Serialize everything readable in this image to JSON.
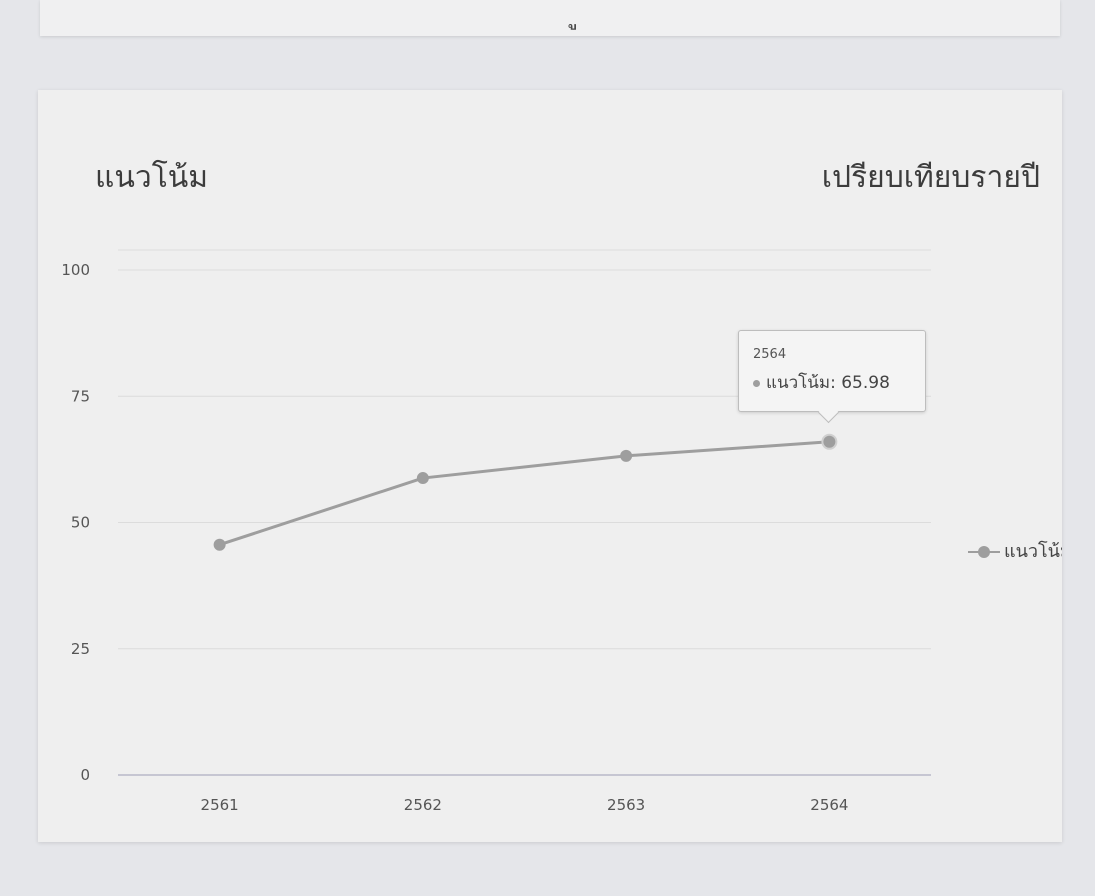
{
  "top_panel": {
    "partial_text": "ู"
  },
  "card": {
    "title": "แนวโน้ม",
    "subtitle": "เปรียบเทียบรายปี"
  },
  "tooltip": {
    "header": "2564",
    "series_label": "แนวโน้ม: 65.98"
  },
  "legend": {
    "label": "แนวโน้ม"
  },
  "colors": {
    "series": "#9e9e9e",
    "grid": "#dcdcdc",
    "axis": "#b8b8c8",
    "text": "#555555"
  },
  "chart_data": {
    "type": "line",
    "categories": [
      "2561",
      "2562",
      "2563",
      "2564"
    ],
    "series": [
      {
        "name": "แนวโน้ม",
        "values": [
          45.6,
          58.8,
          63.2,
          65.98
        ]
      }
    ],
    "title": "แนวโน้ม",
    "subtitle": "เปรียบเทียบรายปี",
    "ylim": [
      0,
      100
    ],
    "yticks": [
      "0",
      "25",
      "50",
      "75",
      "100"
    ],
    "grid": true,
    "legend_position": "right",
    "tooltip_category": "2564"
  }
}
